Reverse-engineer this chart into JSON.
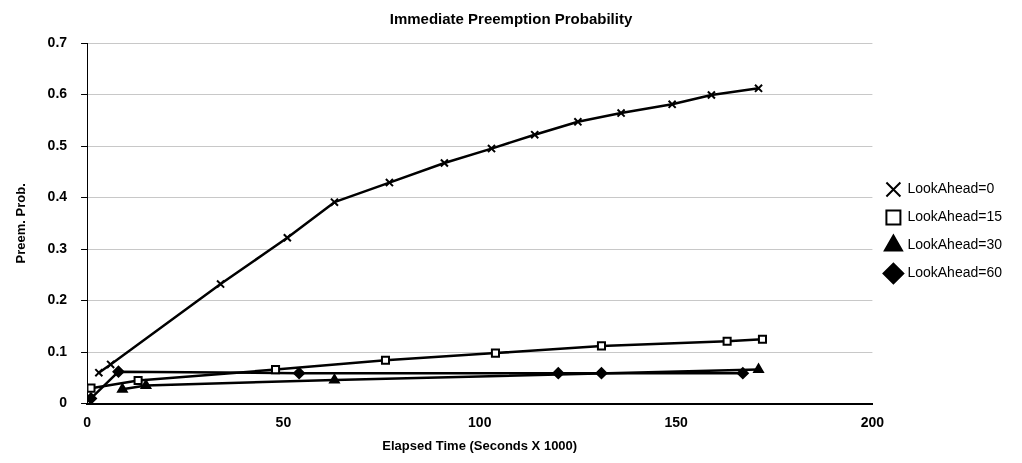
{
  "chart_data": {
    "type": "line",
    "title": "Immediate Preemption Probability",
    "xlabel": "Elapsed Time (Seconds X 1000)",
    "ylabel": "Preem. Prob.",
    "xlim": [
      0,
      200
    ],
    "xticks": [
      0,
      50,
      100,
      150,
      200
    ],
    "ylim": [
      0,
      0.7
    ],
    "yticks": [
      0,
      0.1,
      0.2,
      0.3,
      0.4,
      0.5,
      0.6,
      0.7
    ],
    "grid": "y",
    "legend": "right",
    "series": [
      {
        "name": "LookAhead=0",
        "color": "#000000",
        "marker": "cross",
        "x": [
          3,
          6,
          34,
          51,
          63,
          77,
          91,
          103,
          114,
          125,
          136,
          149,
          159,
          171
        ],
        "values": [
          0.06,
          0.076,
          0.232,
          0.322,
          0.391,
          0.429,
          0.467,
          0.495,
          0.522,
          0.547,
          0.564,
          0.581,
          0.599,
          0.612
        ]
      },
      {
        "name": "LookAhead=15",
        "color": "#000000",
        "marker": "square",
        "x": [
          1,
          13,
          48,
          76,
          104,
          131,
          163,
          172
        ],
        "values": [
          0.03,
          0.045,
          0.066,
          0.084,
          0.098,
          0.112,
          0.121,
          0.125
        ]
      },
      {
        "name": "LookAhead=30",
        "color": "#000000",
        "marker": "triangle",
        "x": [
          9,
          15,
          63,
          171
        ],
        "values": [
          0.028,
          0.035,
          0.046,
          0.066
        ]
      },
      {
        "name": "LookAhead=60",
        "color": "#000000",
        "marker": "diamond",
        "x": [
          1,
          8,
          54,
          120,
          131,
          167
        ],
        "values": [
          0.01,
          0.062,
          0.059,
          0.059,
          0.059,
          0.059
        ]
      }
    ]
  }
}
